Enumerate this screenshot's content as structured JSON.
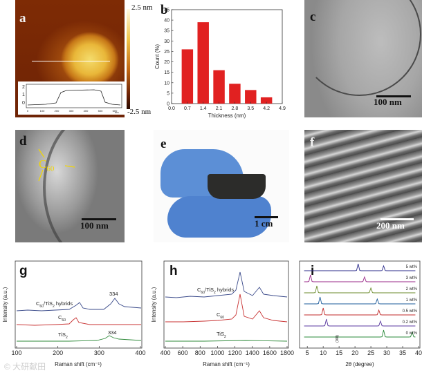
{
  "panels": {
    "a": {
      "label": "a",
      "colorbar_max": "2.5 nm",
      "colorbar_min": "-2.5 nm",
      "profile": {
        "y_ticks": [
          "2",
          "1",
          "0"
        ],
        "x_ticks": [
          "0",
          "100",
          "200",
          "300",
          "400",
          "500",
          "600"
        ],
        "x_unit": "nm"
      }
    },
    "b": {
      "label": "b"
    },
    "c": {
      "label": "c",
      "scale_bar": "100 nm"
    },
    "d": {
      "label": "d",
      "scale_bar": "100 nm",
      "annotation_main": "C",
      "annotation_sub": "60"
    },
    "e": {
      "label": "e",
      "scale_bar": "1 cm"
    },
    "f": {
      "label": "f",
      "scale_bar": "200 nm"
    },
    "g": {
      "label": "g",
      "xlabel": "Raman shift (cm⁻¹)",
      "ylabel": "Intensity (a.u.)",
      "curves": [
        {
          "label_pre": "C",
          "label_sub": "60",
          "label_post": "/TiS",
          "label_sub2": "2",
          "label_end": " hybrids",
          "peak": "334",
          "color": "#3a4a8a"
        },
        {
          "label_pre": "C",
          "label_sub": "60",
          "label_post": "",
          "label_sub2": "",
          "label_end": "",
          "color": "#c83232"
        },
        {
          "label_pre": "TiS",
          "label_sub": "2",
          "label_post": "",
          "label_sub2": "",
          "label_end": "",
          "peak": "334",
          "color": "#2f8a3a"
        }
      ]
    },
    "h": {
      "label": "h",
      "xlabel": "Raman shift (cm⁻¹)",
      "ylabel": "Intensity (a.u.)",
      "curves": [
        {
          "label_pre": "C",
          "label_sub": "60",
          "label_post": "/TiS",
          "label_sub2": "2",
          "label_end": " hybrids",
          "color": "#3a4a8a"
        },
        {
          "label_pre": "C",
          "label_sub": "60",
          "label_post": "",
          "label_sub2": "",
          "label_end": "",
          "color": "#c83232"
        },
        {
          "label_pre": "TiS",
          "label_sub": "2",
          "label_post": "",
          "label_sub2": "",
          "label_end": "",
          "color": "#2f8a3a"
        }
      ]
    },
    "i": {
      "label": "i",
      "xlabel": "2θ (degree)",
      "peak_label": "(00l)",
      "series": [
        "5 wt%",
        "3 wt%",
        "2 wt%",
        "1 wt%",
        "0.5 wt%",
        "0.2 wt%",
        "0 wt%"
      ],
      "colors": [
        "#2a2a8a",
        "#9a2a8a",
        "#6a8a2a",
        "#1a5a9a",
        "#c02a2a",
        "#5a3aa0",
        "#2a8a3a"
      ]
    }
  },
  "watermark": "© 大研献田",
  "chart_data": [
    {
      "type": "bar",
      "panel": "b",
      "categories": [
        "0.7",
        "1.4",
        "2.1",
        "2.8",
        "3.5",
        "4.2"
      ],
      "values": [
        26,
        39,
        16,
        9.5,
        6.5,
        3
      ],
      "xlabel": "Thickness (nm)",
      "ylabel": "Count (%)",
      "x_ticks": [
        "0.0",
        "0.7",
        "1.4",
        "2.1",
        "2.8",
        "3.5",
        "4.2",
        "4.9"
      ],
      "y_ticks": [
        "0",
        "5",
        "10",
        "15",
        "20",
        "25",
        "30",
        "35",
        "40",
        "45"
      ],
      "xlim": [
        0,
        4.9
      ],
      "ylim": [
        0,
        45
      ],
      "color": "#e12121"
    },
    {
      "type": "line",
      "panel": "g",
      "x_ticks": [
        "100",
        "200",
        "300",
        "400"
      ],
      "xlim": [
        100,
        400
      ]
    },
    {
      "type": "line",
      "panel": "h",
      "x_ticks": [
        "400",
        "600",
        "800",
        "1000",
        "1200",
        "1400",
        "1600",
        "1800"
      ],
      "xlim": [
        400,
        1800
      ]
    },
    {
      "type": "line",
      "panel": "i",
      "x_ticks": [
        "5",
        "10",
        "15",
        "20",
        "25",
        "30",
        "35",
        "40"
      ],
      "xlim": [
        3,
        40
      ]
    }
  ]
}
